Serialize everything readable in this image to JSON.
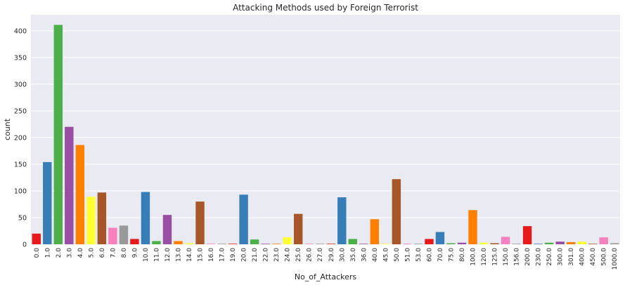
{
  "chart_data": {
    "type": "bar",
    "title": "Attacking Methods used by Foreign Terrorist",
    "xlabel": "No_of_Attackers",
    "ylabel": "count",
    "ylim": [
      0,
      430
    ],
    "yticks": [
      0,
      50,
      100,
      150,
      200,
      250,
      300,
      350,
      400
    ],
    "grid": true,
    "categories": [
      "0.0",
      "1.0",
      "2.0",
      "3.0",
      "4.0",
      "5.0",
      "6.0",
      "7.0",
      "8.0",
      "9.0",
      "10.0",
      "11.0",
      "12.0",
      "13.0",
      "14.0",
      "15.0",
      "16.0",
      "17.0",
      "19.0",
      "20.0",
      "21.0",
      "22.0",
      "23.0",
      "24.0",
      "25.0",
      "26.0",
      "27.0",
      "29.0",
      "30.0",
      "35.0",
      "36.0",
      "40.0",
      "45.0",
      "50.0",
      "51.0",
      "53.0",
      "60.0",
      "70.0",
      "75.0",
      "80.0",
      "100.0",
      "120.0",
      "125.0",
      "150.0",
      "156.0",
      "200.0",
      "230.0",
      "250.0",
      "300.0",
      "301.0",
      "400.0",
      "450.0",
      "500.0",
      "1000.0"
    ],
    "values": [
      20,
      154,
      411,
      220,
      186,
      89,
      97,
      31,
      35,
      10,
      98,
      6,
      55,
      6,
      2,
      80,
      1,
      1,
      1,
      93,
      9,
      1,
      1,
      13,
      57,
      1,
      1,
      1,
      88,
      10,
      1,
      47,
      1,
      122,
      1,
      1,
      10,
      23,
      2,
      3,
      64,
      3,
      2,
      14,
      1,
      34,
      1,
      3,
      5,
      4,
      5,
      1,
      13,
      2
    ],
    "colors": [
      "#e41a1c",
      "#377eb8",
      "#4daf4a",
      "#984ea3",
      "#ff7f00",
      "#ffff33",
      "#a65628",
      "#f781bf",
      "#999999"
    ],
    "background": "#eaeaf2",
    "gridcolor": "#ffffff"
  }
}
